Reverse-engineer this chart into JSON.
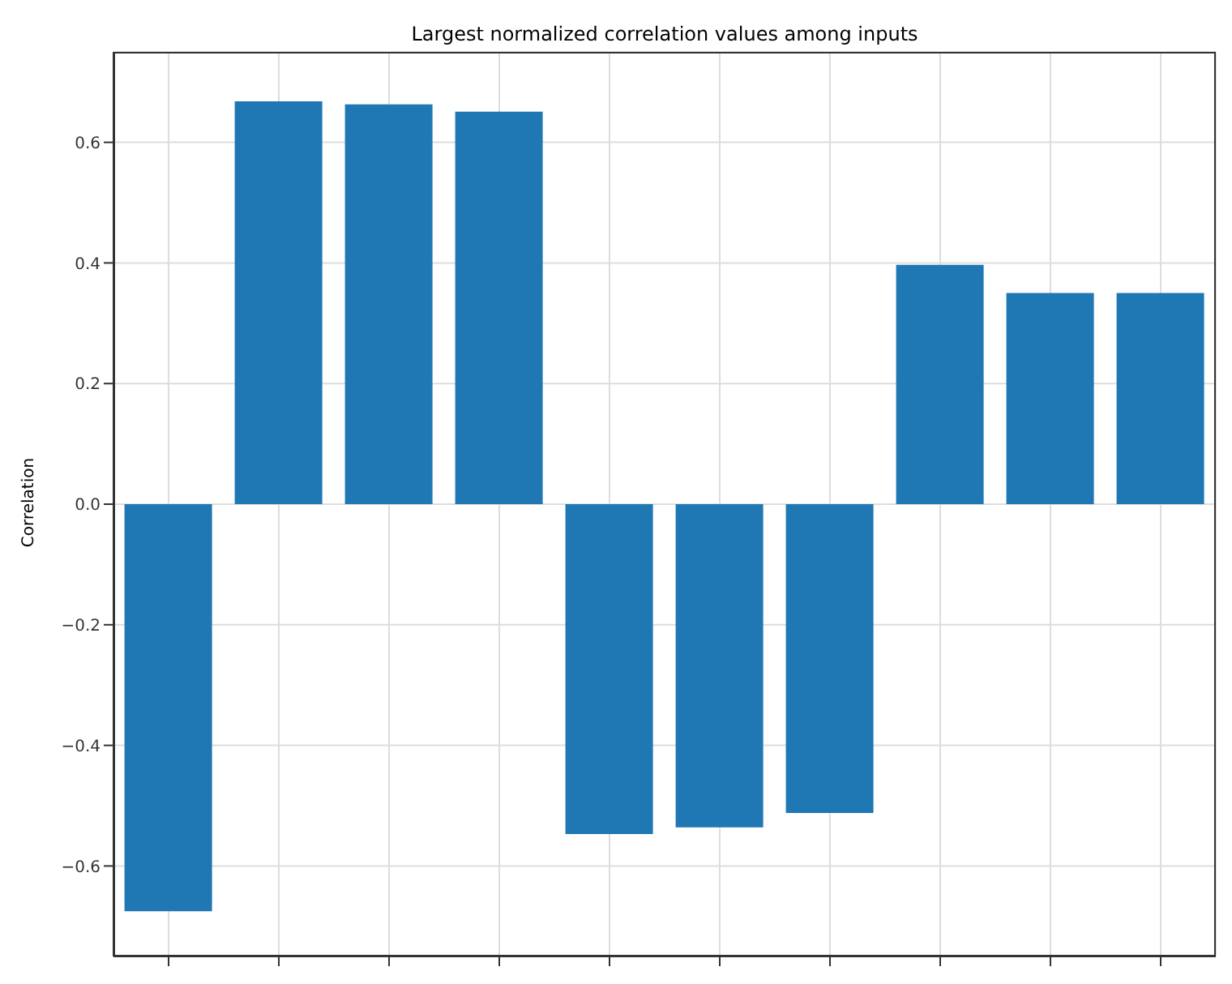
{
  "chart_data": {
    "type": "bar",
    "title": "Largest normalized correlation values among inputs",
    "ylabel": "Correlation",
    "categories": [
      null,
      null,
      null,
      null,
      null,
      null,
      null,
      null,
      null,
      null
    ],
    "values": [
      -0.675,
      0.668,
      0.663,
      0.651,
      -0.547,
      -0.536,
      -0.512,
      0.397,
      0.35,
      0.35
    ],
    "color": "#1f77b4",
    "ylim": [
      -0.75,
      0.75
    ],
    "yticks": [
      {
        "value": -0.6,
        "label": "−0.6"
      },
      {
        "value": -0.4,
        "label": "−0.4"
      },
      {
        "value": -0.2,
        "label": "−0.2"
      },
      {
        "value": 0,
        "label": "0.0"
      },
      {
        "value": 0.2,
        "label": "0.2"
      },
      {
        "value": 0.4,
        "label": "0.4"
      },
      {
        "value": 0.6,
        "label": "0.6"
      }
    ],
    "grid": true
  }
}
